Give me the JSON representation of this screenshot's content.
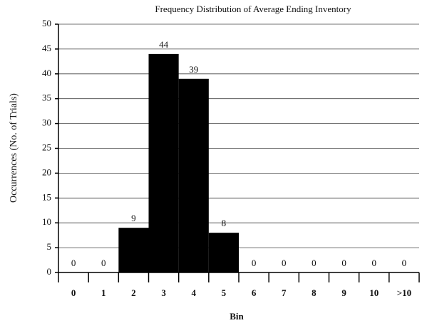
{
  "chart_data": {
    "type": "bar",
    "title": "Frequency Distribution of Average Ending Inventory",
    "x_label": "Bin",
    "y_label": "Occurrences (No. of Trials)",
    "categories": [
      "0",
      "1",
      "2",
      "3",
      "4",
      "5",
      "6",
      "7",
      "8",
      "9",
      "10",
      ">10"
    ],
    "values": [
      0,
      0,
      9,
      44,
      39,
      8,
      0,
      0,
      0,
      0,
      0,
      0
    ],
    "color": "#000000",
    "ylim": [
      0,
      50
    ],
    "yticks": [
      0,
      5,
      10,
      15,
      20,
      25,
      30,
      35,
      40,
      45,
      50
    ],
    "grid": true
  }
}
